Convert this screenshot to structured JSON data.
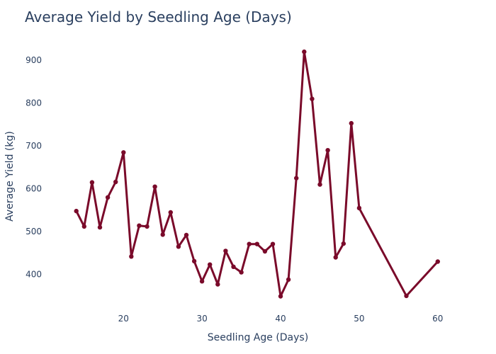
{
  "chart_data": {
    "type": "line",
    "title": "Average Yield by Seedling Age (Days)",
    "xlabel": "Seedling Age (Days)",
    "ylabel": "Average Yield (kg)",
    "xlim": [
      11.5,
      62
    ],
    "ylim": [
      330,
      945
    ],
    "xticks": [
      20,
      30,
      40,
      50,
      60
    ],
    "yticks": [
      400,
      500,
      600,
      700,
      800,
      900
    ],
    "grid": false,
    "legend": "none",
    "line_color": "#7a0a2a",
    "series": [
      {
        "x": [
          14,
          15,
          16,
          17,
          18,
          19,
          20,
          21,
          22,
          23,
          24,
          25,
          26,
          27,
          28,
          29,
          30,
          31,
          32,
          33,
          34,
          35,
          36,
          37,
          38,
          39,
          40,
          41,
          42,
          43,
          44,
          45,
          46,
          47,
          48,
          49,
          50,
          56,
          60
        ],
        "values": [
          548,
          512,
          615,
          510,
          580,
          616,
          685,
          442,
          514,
          512,
          605,
          493,
          545,
          465,
          492,
          431,
          384,
          423,
          377,
          455,
          418,
          405,
          471,
          471,
          454,
          471,
          349,
          388,
          625,
          920,
          810,
          610,
          690,
          440,
          472,
          753,
          555,
          350,
          430
        ]
      }
    ]
  }
}
